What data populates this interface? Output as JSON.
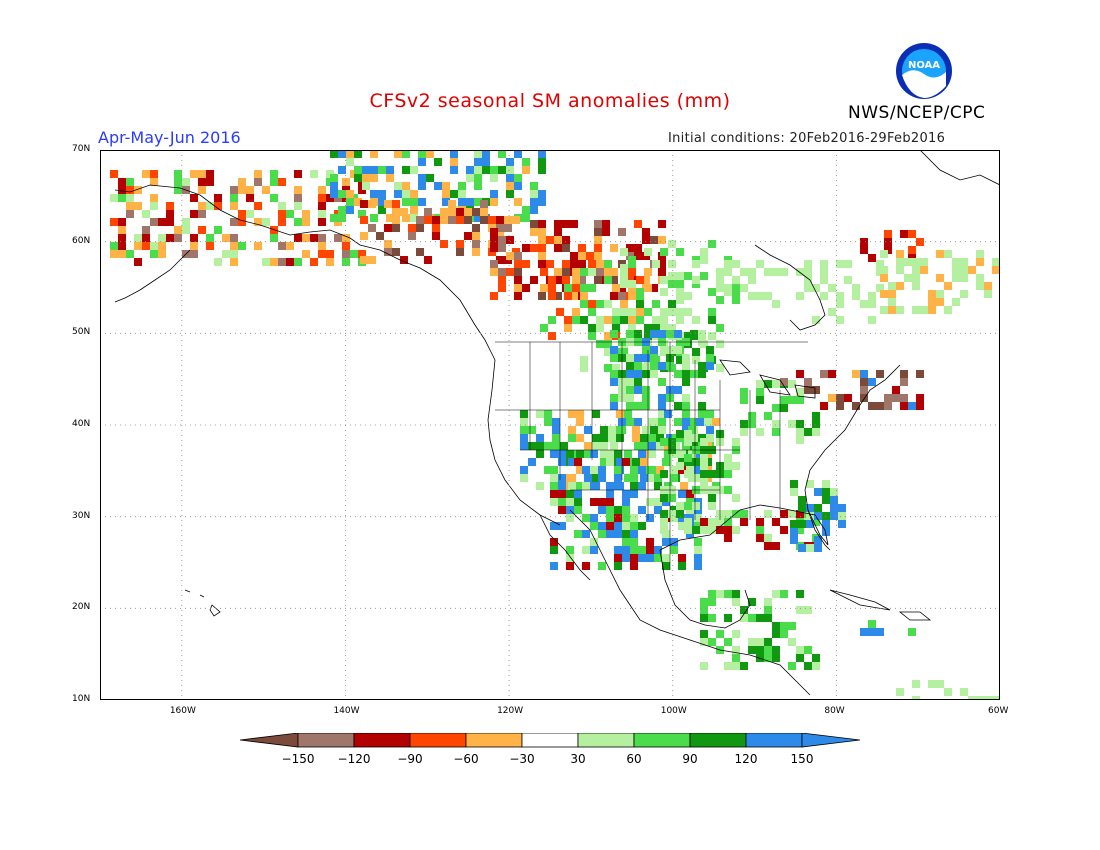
{
  "header": {
    "title": "CFSv2 seasonal SM anomalies (mm)",
    "period": "Apr-May-Jun 2016",
    "initial_conditions": "Initial conditions: 20Feb2016-29Feb2016",
    "agency": "NWS/NCEP/CPC",
    "logo_text": "NOAA"
  },
  "map": {
    "lat_labels": [
      "70N",
      "60N",
      "50N",
      "40N",
      "30N",
      "20N",
      "10N"
    ],
    "lon_labels": [
      "160W",
      "140W",
      "120W",
      "100W",
      "80W",
      "60W"
    ],
    "lon_range": [
      -170,
      -60
    ],
    "lat_range": [
      10,
      70
    ],
    "grid": "dotted",
    "region": "North America"
  },
  "legend": {
    "unit": "mm",
    "tick_labels": [
      "-150",
      "-120",
      "-90",
      "-60",
      "-30",
      "30",
      "60",
      "90",
      "120",
      "150"
    ],
    "colors": [
      "#7b4a3a",
      "#a0756a",
      "#b30000",
      "#ff4500",
      "#ffb347",
      "#ffffff",
      "#b4f0a0",
      "#4bdc4b",
      "#109810",
      "#2d8ae8",
      "#2d8ae8"
    ]
  }
}
